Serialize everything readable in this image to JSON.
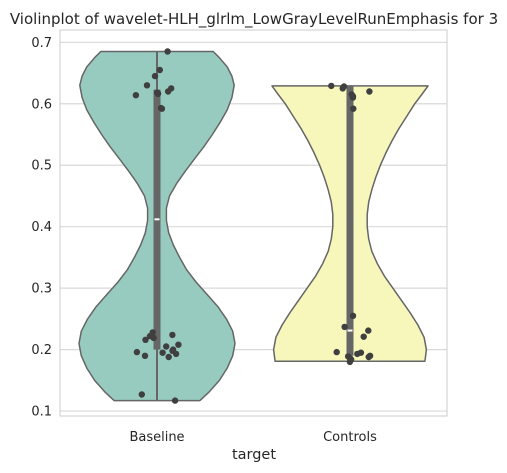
{
  "chart_data": {
    "type": "violin",
    "title": "Violinplot of wavelet-HLH_glrlm_LowGrayLevelRunEmphasis for 3",
    "xlabel": "target",
    "ylabel": "",
    "categories": [
      "Baseline",
      "Controls"
    ],
    "ylim": [
      0.092,
      0.72
    ],
    "yticks": [
      0.1,
      0.2,
      0.3,
      0.4,
      0.5,
      0.6,
      0.7
    ],
    "ytick_labels": [
      "0.1",
      "0.2",
      "0.3",
      "0.4",
      "0.5",
      "0.6",
      "0.7"
    ],
    "grid": true,
    "series": [
      {
        "name": "Baseline",
        "color": "#97cbc0",
        "median": 0.412,
        "q1": 0.2,
        "q3": 0.623,
        "whisker_low": 0.117,
        "whisker_high": 0.685,
        "density_profile": [
          [
            0.117,
            0.55
          ],
          [
            0.13,
            0.66
          ],
          [
            0.15,
            0.8
          ],
          [
            0.17,
            0.9
          ],
          [
            0.19,
            0.97
          ],
          [
            0.21,
            1.0
          ],
          [
            0.23,
            0.97
          ],
          [
            0.25,
            0.89
          ],
          [
            0.27,
            0.78
          ],
          [
            0.29,
            0.64
          ],
          [
            0.31,
            0.5
          ],
          [
            0.33,
            0.38
          ],
          [
            0.35,
            0.29
          ],
          [
            0.37,
            0.21
          ],
          [
            0.39,
            0.15
          ],
          [
            0.41,
            0.12
          ],
          [
            0.43,
            0.12
          ],
          [
            0.45,
            0.16
          ],
          [
            0.47,
            0.25
          ],
          [
            0.49,
            0.36
          ],
          [
            0.51,
            0.48
          ],
          [
            0.53,
            0.6
          ],
          [
            0.55,
            0.71
          ],
          [
            0.57,
            0.81
          ],
          [
            0.59,
            0.9
          ],
          [
            0.61,
            0.96
          ],
          [
            0.63,
            0.99
          ],
          [
            0.645,
            0.96
          ],
          [
            0.66,
            0.9
          ],
          [
            0.675,
            0.8
          ],
          [
            0.685,
            0.72
          ]
        ],
        "points": [
          0.685,
          0.655,
          0.645,
          0.63,
          0.625,
          0.62,
          0.618,
          0.617,
          0.616,
          0.614,
          0.593,
          0.592,
          0.228,
          0.224,
          0.222,
          0.219,
          0.216,
          0.208,
          0.205,
          0.2,
          0.198,
          0.196,
          0.195,
          0.193,
          0.19,
          0.188,
          0.127,
          0.117
        ]
      },
      {
        "name": "Controls",
        "color": "#f7f7bc",
        "median": 0.231,
        "q1": 0.19,
        "q3": 0.628,
        "whisker_low": 0.181,
        "whisker_high": 0.629,
        "density_profile": [
          [
            0.181,
            0.96
          ],
          [
            0.2,
            0.98
          ],
          [
            0.22,
            0.95
          ],
          [
            0.24,
            0.87
          ],
          [
            0.26,
            0.77
          ],
          [
            0.28,
            0.66
          ],
          [
            0.3,
            0.55
          ],
          [
            0.32,
            0.44
          ],
          [
            0.34,
            0.35
          ],
          [
            0.36,
            0.28
          ],
          [
            0.38,
            0.24
          ],
          [
            0.4,
            0.22
          ],
          [
            0.42,
            0.22
          ],
          [
            0.44,
            0.24
          ],
          [
            0.46,
            0.28
          ],
          [
            0.48,
            0.33
          ],
          [
            0.5,
            0.39
          ],
          [
            0.52,
            0.46
          ],
          [
            0.54,
            0.54
          ],
          [
            0.56,
            0.63
          ],
          [
            0.58,
            0.73
          ],
          [
            0.6,
            0.83
          ],
          [
            0.615,
            0.92
          ],
          [
            0.629,
            1.0
          ]
        ],
        "points": [
          0.629,
          0.628,
          0.625,
          0.62,
          0.615,
          0.612,
          0.61,
          0.592,
          0.255,
          0.237,
          0.231,
          0.221,
          0.196,
          0.195,
          0.193,
          0.19,
          0.189,
          0.188,
          0.186,
          0.184,
          0.18
        ]
      }
    ]
  }
}
